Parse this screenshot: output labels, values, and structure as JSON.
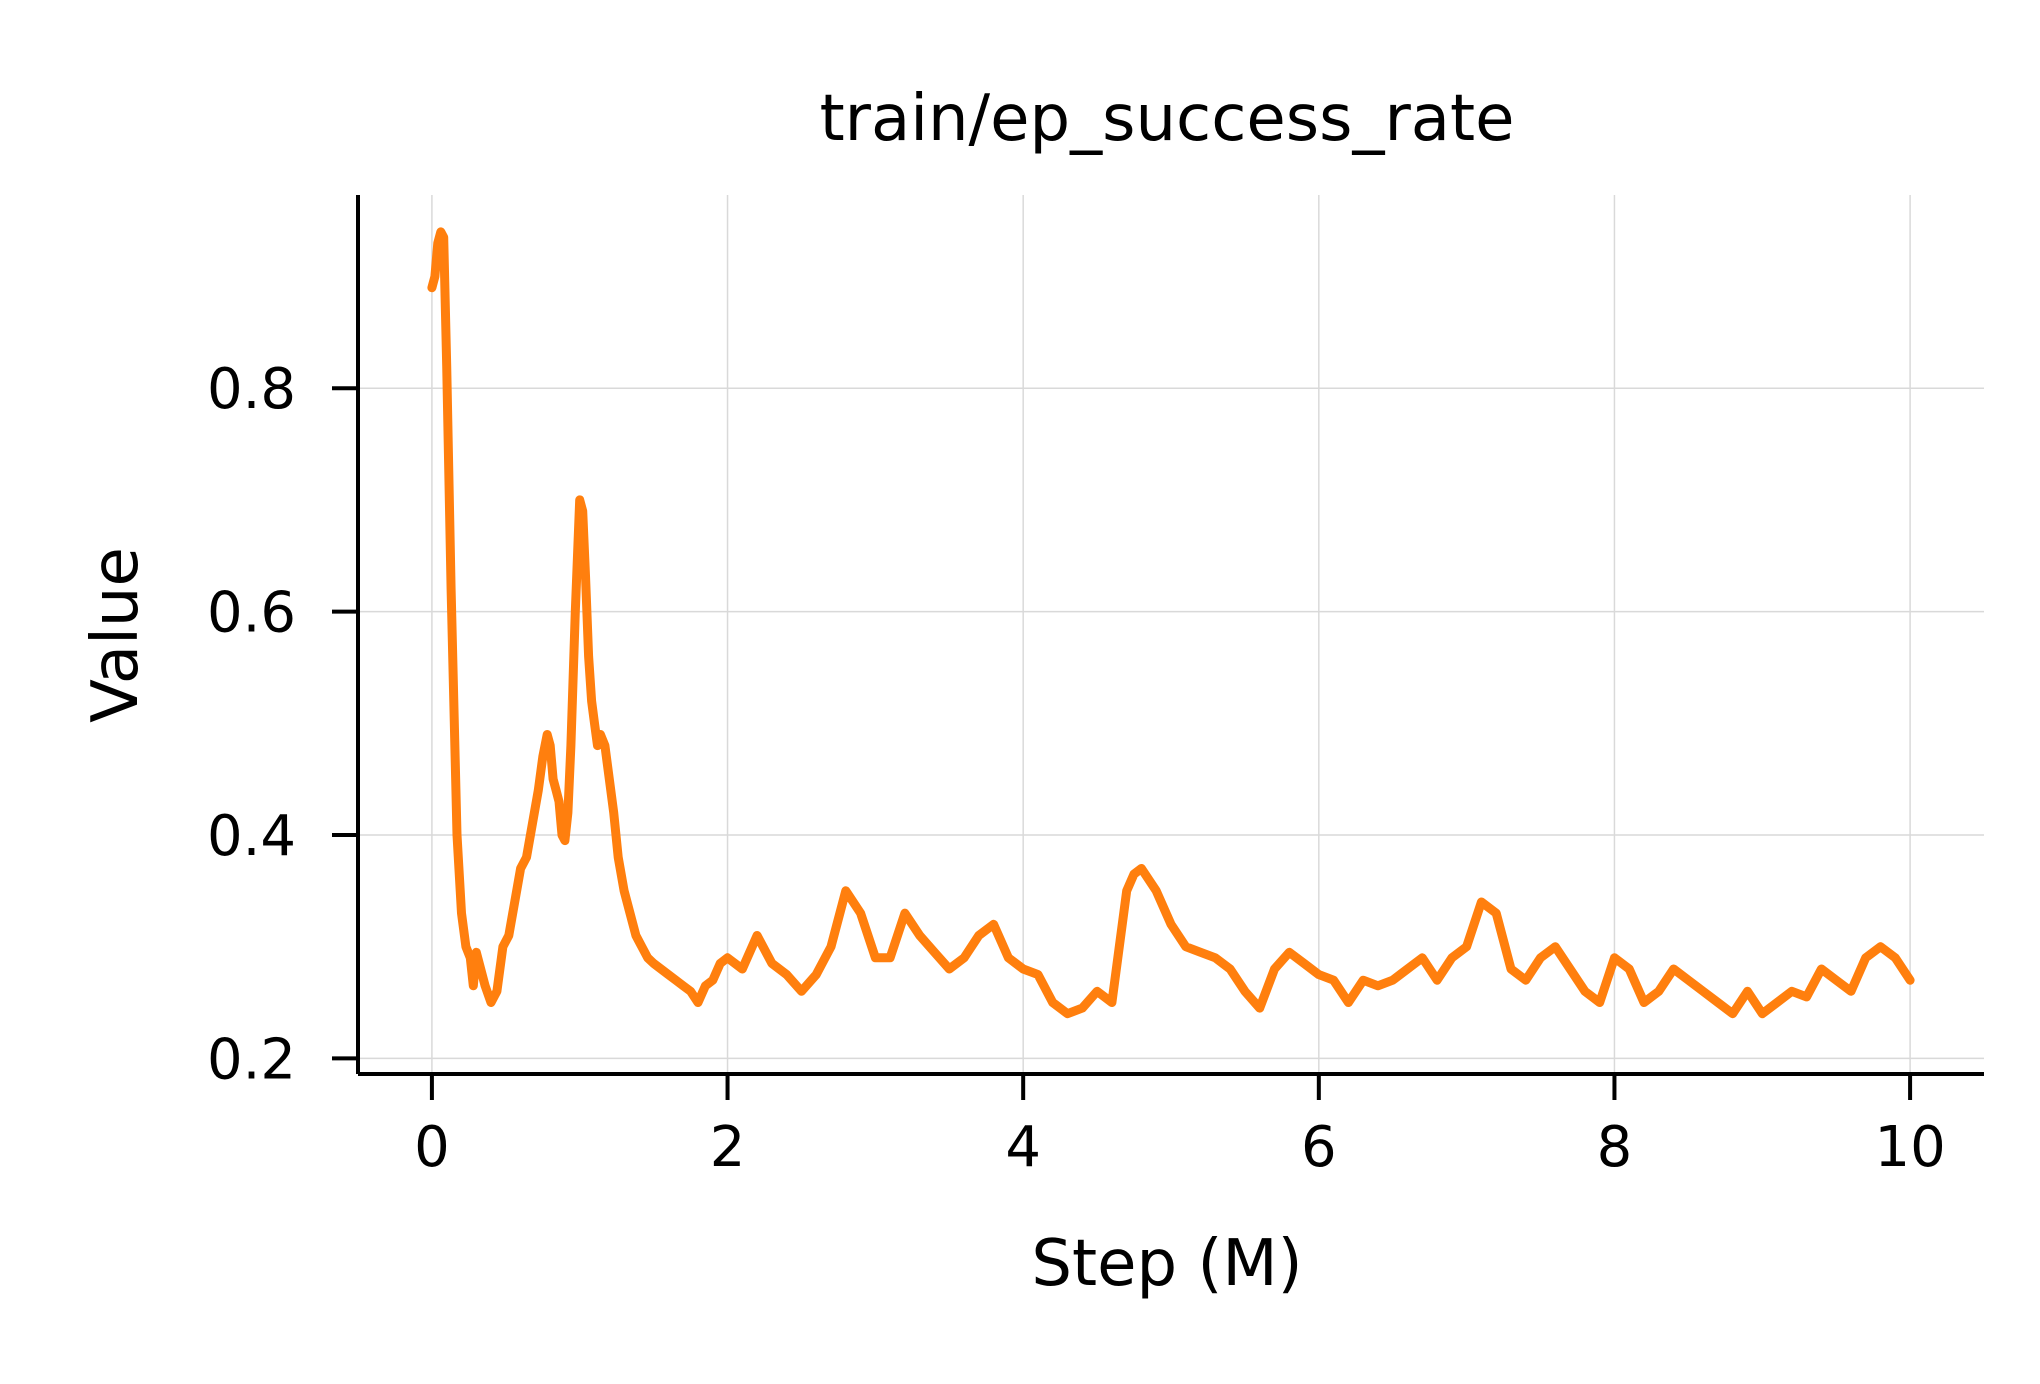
{
  "chart_data": {
    "type": "line",
    "title": "train/ep_success_rate",
    "xlabel": "Step (M)",
    "ylabel": "Value",
    "xlim": [
      -0.5,
      10.5
    ],
    "ylim": [
      0.186,
      0.973
    ],
    "xticks": [
      0,
      2,
      4,
      6,
      8,
      10
    ],
    "xtick_labels": [
      "0",
      "2",
      "4",
      "6",
      "8",
      "10"
    ],
    "yticks": [
      0.2,
      0.4,
      0.6,
      0.8
    ],
    "ytick_labels": [
      "0.2",
      "0.4",
      "0.6",
      "0.8"
    ],
    "grid": true,
    "legend": "none",
    "series": [
      {
        "color": "#ff7f0e",
        "x": [
          0,
          0.02,
          0.04,
          0.06,
          0.08,
          0.1,
          0.13,
          0.17,
          0.2,
          0.23,
          0.26,
          0.28,
          0.3,
          0.33,
          0.36,
          0.4,
          0.44,
          0.48,
          0.52,
          0.56,
          0.6,
          0.64,
          0.68,
          0.72,
          0.75,
          0.78,
          0.8,
          0.82,
          0.84,
          0.86,
          0.88,
          0.9,
          0.92,
          0.94,
          0.97,
          1.0,
          1.02,
          1.04,
          1.06,
          1.08,
          1.1,
          1.12,
          1.14,
          1.17,
          1.2,
          1.23,
          1.26,
          1.3,
          1.34,
          1.38,
          1.42,
          1.46,
          1.5,
          1.55,
          1.6,
          1.65,
          1.7,
          1.75,
          1.8,
          1.85,
          1.9,
          1.95,
          2.0,
          2.1,
          2.2,
          2.3,
          2.4,
          2.5,
          2.6,
          2.7,
          2.8,
          2.9,
          3.0,
          3.1,
          3.2,
          3.3,
          3.4,
          3.5,
          3.6,
          3.7,
          3.8,
          3.9,
          4.0,
          4.1,
          4.2,
          4.3,
          4.4,
          4.5,
          4.6,
          4.7,
          4.75,
          4.8,
          4.9,
          5.0,
          5.1,
          5.2,
          5.3,
          5.4,
          5.5,
          5.6,
          5.7,
          5.8,
          5.9,
          6.0,
          6.1,
          6.2,
          6.3,
          6.4,
          6.5,
          6.6,
          6.7,
          6.8,
          6.9,
          7.0,
          7.1,
          7.2,
          7.3,
          7.4,
          7.5,
          7.6,
          7.7,
          7.8,
          7.9,
          8.0,
          8.1,
          8.2,
          8.3,
          8.4,
          8.5,
          8.6,
          8.7,
          8.8,
          8.9,
          9.0,
          9.1,
          9.2,
          9.3,
          9.4,
          9.5,
          9.6,
          9.7,
          9.8,
          9.9,
          10.0
        ],
        "values": [
          0.89,
          0.9,
          0.93,
          0.94,
          0.935,
          0.82,
          0.62,
          0.4,
          0.33,
          0.3,
          0.29,
          0.265,
          0.295,
          0.28,
          0.265,
          0.25,
          0.26,
          0.3,
          0.31,
          0.34,
          0.37,
          0.38,
          0.41,
          0.44,
          0.47,
          0.49,
          0.48,
          0.45,
          0.44,
          0.43,
          0.4,
          0.395,
          0.42,
          0.48,
          0.6,
          0.7,
          0.69,
          0.63,
          0.56,
          0.52,
          0.5,
          0.48,
          0.49,
          0.48,
          0.45,
          0.42,
          0.38,
          0.35,
          0.33,
          0.31,
          0.3,
          0.29,
          0.285,
          0.28,
          0.275,
          0.27,
          0.265,
          0.26,
          0.25,
          0.265,
          0.27,
          0.285,
          0.29,
          0.28,
          0.31,
          0.285,
          0.275,
          0.26,
          0.275,
          0.3,
          0.35,
          0.33,
          0.29,
          0.29,
          0.33,
          0.31,
          0.295,
          0.28,
          0.29,
          0.31,
          0.32,
          0.29,
          0.28,
          0.275,
          0.25,
          0.24,
          0.245,
          0.26,
          0.25,
          0.35,
          0.365,
          0.37,
          0.35,
          0.32,
          0.3,
          0.295,
          0.29,
          0.28,
          0.26,
          0.245,
          0.28,
          0.295,
          0.285,
          0.275,
          0.27,
          0.25,
          0.27,
          0.265,
          0.27,
          0.28,
          0.29,
          0.27,
          0.29,
          0.3,
          0.34,
          0.33,
          0.28,
          0.27,
          0.29,
          0.3,
          0.28,
          0.26,
          0.25,
          0.29,
          0.28,
          0.25,
          0.26,
          0.28,
          0.27,
          0.26,
          0.25,
          0.24,
          0.26,
          0.24,
          0.25,
          0.26,
          0.255,
          0.28,
          0.27,
          0.26,
          0.29,
          0.3,
          0.29,
          0.27
        ]
      }
    ]
  }
}
